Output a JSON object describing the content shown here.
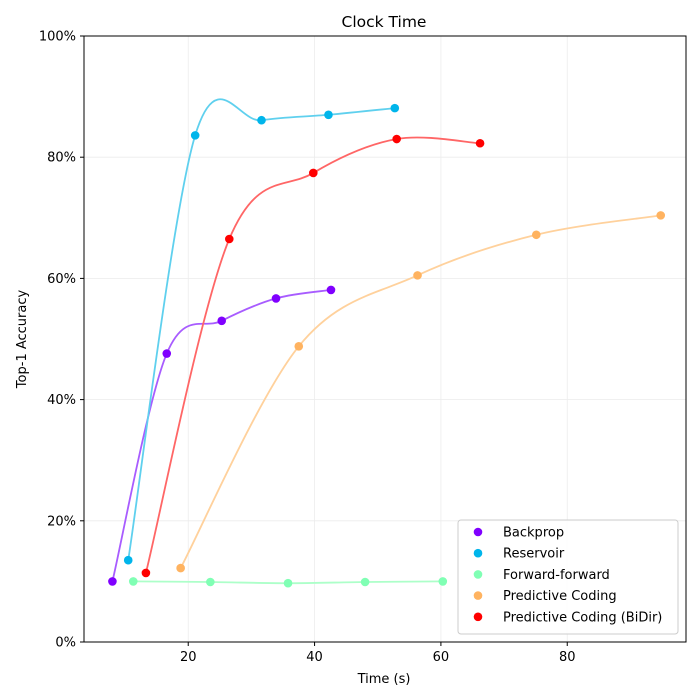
{
  "chart_data": {
    "type": "scatter",
    "title": "Clock Time",
    "xlabel": "Time (s)",
    "ylabel": "Top-1 Accuracy",
    "xlim": [
      3.5,
      98.8
    ],
    "ylim": [
      0,
      100
    ],
    "xticks": [
      20,
      40,
      60,
      80
    ],
    "yticks": [
      0,
      20,
      40,
      60,
      80,
      100
    ],
    "ytick_format": "percent",
    "grid": true,
    "legend_position": "lower right",
    "series": [
      {
        "name": "Backprop",
        "color": "#8000ff",
        "line_color": "#a85cff",
        "x": [
          8.0,
          16.6,
          25.3,
          33.9,
          42.6
        ],
        "y": [
          10.0,
          47.6,
          53.0,
          56.7,
          58.1
        ]
      },
      {
        "name": "Reservoir",
        "color": "#00b5eb",
        "line_color": "#5fd0ee",
        "x": [
          10.5,
          21.1,
          31.6,
          42.2,
          52.7
        ],
        "y": [
          13.5,
          83.6,
          86.1,
          87.0,
          88.1
        ]
      },
      {
        "name": "Forward-forward",
        "color": "#80ffb4",
        "line_color": "#adffc9",
        "x": [
          11.3,
          23.5,
          35.8,
          48.0,
          60.3
        ],
        "y": [
          10.0,
          9.9,
          9.7,
          9.9,
          10.0
        ]
      },
      {
        "name": "Predictive Coding",
        "color": "#ffb360",
        "line_color": "#ffd19c",
        "x": [
          18.8,
          37.5,
          56.3,
          75.1,
          94.8
        ],
        "y": [
          12.2,
          48.8,
          60.5,
          67.2,
          70.4
        ]
      },
      {
        "name": "Predictive Coding (BiDir)",
        "color": "#ff0000",
        "line_color": "#ff6666",
        "x": [
          13.3,
          26.5,
          39.8,
          53.0,
          66.2
        ],
        "y": [
          11.4,
          66.5,
          77.4,
          83.0,
          82.3
        ]
      }
    ]
  }
}
